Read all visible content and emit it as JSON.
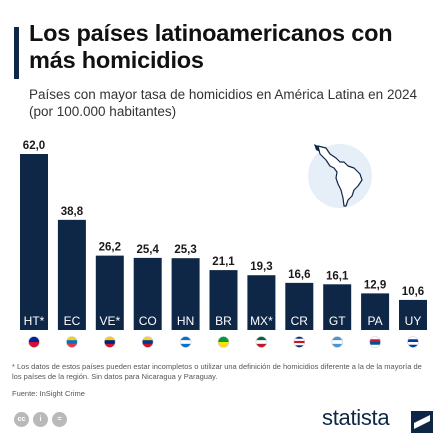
{
  "title": "Los países latinoamericanos con más homicidios",
  "subtitle": "Países con mayor tasa de homicidios en América Latina en 2024 (por 100.000 habitantes)",
  "chart_data": {
    "type": "bar",
    "categories": [
      "HT*",
      "EC",
      "VE*",
      "CO",
      "HN",
      "BR",
      "MX*",
      "CR",
      "GT",
      "PA",
      "UY"
    ],
    "values": [
      62.0,
      38.8,
      26.2,
      25.4,
      25.3,
      21.1,
      19.3,
      16.6,
      16.1,
      12.9,
      10.6
    ],
    "value_labels": [
      "62,0",
      "38,8",
      "26,2",
      "25,4",
      "25,3",
      "21,1",
      "19,3",
      "16,6",
      "16,1",
      "12,9",
      "10,6"
    ],
    "flag_icons": [
      "haiti-flag-icon",
      "ecuador-flag-icon",
      "venezuela-flag-icon",
      "colombia-flag-icon",
      "honduras-flag-icon",
      "brazil-flag-icon",
      "mexico-flag-icon",
      "costa-rica-flag-icon",
      "guatemala-flag-icon",
      "panama-flag-icon",
      "uruguay-flag-icon"
    ],
    "bar_color": "#0f2747",
    "ylim": [
      0,
      62
    ],
    "grid": false,
    "legend": "none"
  },
  "footnote": "* Los datos de estos países pueden estar incompletos o utilizar una definición de homicidios diferente a la de la mayoría de los países de la región. Sin datos para Nicaragua y Paraguay.",
  "source": "Fuente: InSight Crime",
  "brand": "statista",
  "icons": {
    "map": "latin-america-map-icon",
    "license": [
      "cc-icon",
      "by-icon",
      "nd-icon"
    ]
  }
}
